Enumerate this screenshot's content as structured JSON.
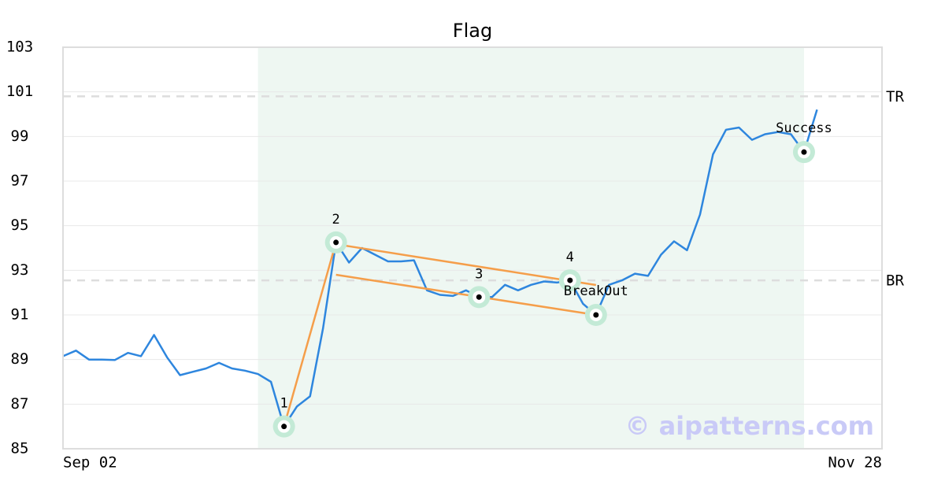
{
  "chart_data": {
    "type": "line",
    "title": "Flag",
    "categories": [
      "Sep 02",
      null,
      null,
      null,
      null,
      null,
      null,
      null,
      null,
      null,
      null,
      null,
      null,
      null,
      null,
      null,
      null,
      null,
      null,
      null,
      null,
      null,
      null,
      null,
      null,
      null,
      null,
      null,
      null,
      null,
      null,
      null,
      null,
      null,
      null,
      null,
      null,
      null,
      null,
      null,
      null,
      null,
      null,
      null,
      null,
      null,
      null,
      null,
      null,
      null,
      null,
      null,
      null,
      null,
      null,
      null,
      null,
      null,
      null,
      null,
      null,
      null,
      null,
      "Nov 28"
    ],
    "values": [
      89.15,
      89.4,
      89.0,
      89.0,
      88.98,
      89.3,
      89.15,
      90.1,
      89.1,
      88.3,
      88.45,
      88.6,
      88.85,
      88.6,
      88.5,
      88.35,
      88.0,
      86.0,
      86.9,
      87.35,
      90.4,
      94.25,
      93.35,
      94.0,
      93.7,
      93.4,
      93.4,
      93.45,
      92.1,
      91.9,
      91.85,
      92.1,
      91.8,
      91.8,
      92.35,
      92.1,
      92.35,
      92.5,
      92.45,
      92.55,
      91.5,
      91.0,
      92.35,
      92.55,
      92.85,
      92.75,
      93.7,
      94.3,
      93.9,
      95.5,
      98.2,
      99.3,
      99.4,
      98.85,
      99.1,
      99.2,
      99.1,
      98.3,
      100.2,
      null,
      null,
      null,
      null,
      null
    ],
    "color": "#2e86de",
    "ylim": [
      85,
      103
    ],
    "yticks": [
      85,
      87,
      89,
      91,
      93,
      95,
      97,
      99,
      101,
      103
    ],
    "grid": true,
    "shaded_range": [
      15,
      57
    ],
    "shade_color": "#eef7f2",
    "reference_lines": [
      {
        "label": "TR",
        "value": 100.8
      },
      {
        "label": "BR",
        "value": 92.55
      }
    ],
    "trend_color": "#f59e4a",
    "trend_lines": [
      {
        "x": [
          17,
          21
        ],
        "values": [
          86.0,
          94.25
        ]
      },
      {
        "x": [
          21,
          41
        ],
        "values": [
          94.17,
          92.34
        ]
      },
      {
        "x": [
          21,
          41
        ],
        "values": [
          92.8,
          91.0
        ]
      }
    ],
    "markers": [
      {
        "label": "1",
        "index": 17,
        "value": 86.0
      },
      {
        "label": "2",
        "index": 21,
        "value": 94.25
      },
      {
        "label": "3",
        "index": 32,
        "value": 91.8
      },
      {
        "label": "4",
        "index": 39,
        "value": 92.55
      },
      {
        "label": "BreakOut",
        "index": 41,
        "value": 91.0
      },
      {
        "label": "Success",
        "index": 57,
        "value": 98.3
      }
    ],
    "watermark": "© aipatterns.com"
  }
}
